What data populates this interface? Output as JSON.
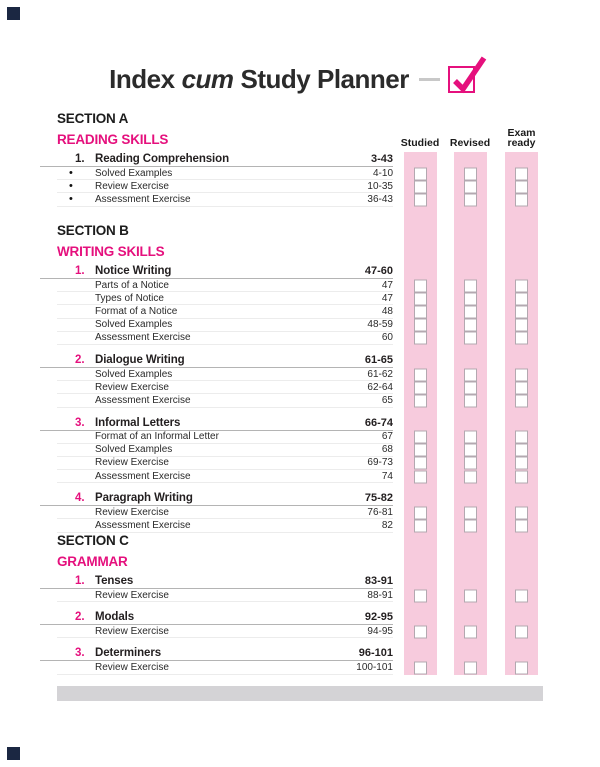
{
  "title": {
    "word1": "Index",
    "word2": "cum",
    "word3": "Study Planner"
  },
  "colors": {
    "magenta": "#e5107d",
    "band_pink": "#f7cbdd",
    "footer_gray": "#d4d3d6"
  },
  "status_columns": [
    "Studied",
    "Revised",
    "Exam ready"
  ],
  "icons": {
    "title_checkmark": "checkmark-icon"
  },
  "sections": [
    {
      "heading": "SECTION A",
      "subheading": "READING SKILLS",
      "topics": [
        {
          "num": "1.",
          "numStyle": "dark",
          "title": "Reading Comprehension",
          "pages": "3-43",
          "bullets": true,
          "items": [
            {
              "label": "Solved Examples",
              "pages": "4-10"
            },
            {
              "label": "Review Exercise",
              "pages": "10-35"
            },
            {
              "label": "Assessment Exercise",
              "pages": "36-43"
            }
          ]
        }
      ]
    },
    {
      "heading": "SECTION B",
      "subheading": "WRITING SKILLS",
      "topics": [
        {
          "num": "1.",
          "title": "Notice Writing",
          "pages": "47-60",
          "items": [
            {
              "label": "Parts of a Notice",
              "pages": "47"
            },
            {
              "label": "Types of Notice",
              "pages": "47"
            },
            {
              "label": "Format of a Notice",
              "pages": "48"
            },
            {
              "label": "Solved Examples",
              "pages": "48-59"
            },
            {
              "label": "Assessment Exercise",
              "pages": "60"
            }
          ]
        },
        {
          "num": "2.",
          "title": "Dialogue Writing",
          "pages": "61-65",
          "items": [
            {
              "label": "Solved Examples",
              "pages": "61-62"
            },
            {
              "label": "Review Exercise",
              "pages": "62-64"
            },
            {
              "label": "Assessment Exercise",
              "pages": "65"
            }
          ]
        },
        {
          "num": "3.",
          "title": "Informal Letters",
          "pages": "66-74",
          "items": [
            {
              "label": "Format of an Informal Letter",
              "pages": "67"
            },
            {
              "label": "Solved Examples",
              "pages": "68"
            },
            {
              "label": "Review Exercise",
              "pages": "69-73"
            },
            {
              "label": "Assessment Exercise",
              "pages": "74"
            }
          ]
        },
        {
          "num": "4.",
          "title": "Paragraph Writing",
          "pages": "75-82",
          "items": [
            {
              "label": "Review Exercise",
              "pages": "76-81"
            },
            {
              "label": "Assessment Exercise",
              "pages": "82"
            }
          ]
        }
      ]
    },
    {
      "heading": "SECTION C",
      "subheading": "GRAMMAR",
      "topics": [
        {
          "num": "1.",
          "title": "Tenses",
          "pages": "83-91",
          "items": [
            {
              "label": "Review Exercise",
              "pages": "88-91"
            }
          ]
        },
        {
          "num": "2.",
          "title": "Modals",
          "pages": "92-95",
          "items": [
            {
              "label": "Review Exercise",
              "pages": "94-95"
            }
          ]
        },
        {
          "num": "3.",
          "title": "Determiners",
          "pages": "96-101",
          "items": [
            {
              "label": "Review Exercise",
              "pages": "100-101"
            }
          ]
        }
      ]
    }
  ]
}
